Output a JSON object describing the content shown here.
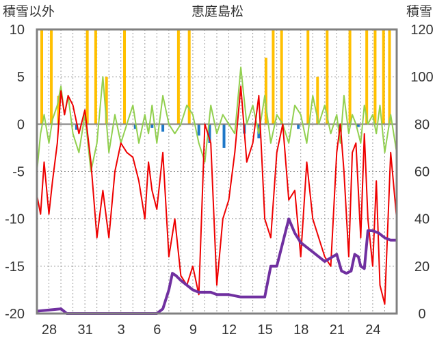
{
  "chart_data": {
    "type": "line",
    "title": "恵庭島松",
    "ylabel_left": "積雪以外",
    "ylabel_right": "積雪",
    "ylim_left": [
      -20,
      10
    ],
    "ylim_right": [
      0,
      120
    ],
    "y_ticks_left": [
      "10",
      "5",
      "0",
      "-5",
      "-10",
      "-15",
      "-20"
    ],
    "y_ticks_right": [
      "120",
      "100",
      "80",
      "60",
      "40",
      "20",
      "0"
    ],
    "x_ticks": [
      "28",
      "31",
      "3",
      "6",
      "9",
      "12",
      "15",
      "18",
      "21",
      "24"
    ],
    "x_range_days": [
      0,
      30
    ],
    "grid": "dotted-vertical-and-horizontal",
    "colors": {
      "temperature": "#ee0000",
      "wind": "#92d050",
      "precip_pos": "#ffc000",
      "precip_neg": "#1f78c8",
      "snow_depth": "#7030a0",
      "frame": "#808080",
      "zero_line": "#808080"
    },
    "series": [
      {
        "key": "temperature",
        "axis": "left",
        "x": [
          0,
          0.3,
          0.6,
          1,
          1.3,
          1.7,
          2,
          2.3,
          2.6,
          3,
          3.5,
          4,
          4.5,
          5,
          5.5,
          6,
          6.5,
          7,
          7.5,
          8,
          8.5,
          9,
          9.3,
          9.6,
          10,
          10.5,
          11,
          11.5,
          12,
          12.5,
          13,
          13.5,
          14,
          14.5,
          15,
          15.5,
          16,
          16.5,
          17,
          17.5,
          18,
          18.5,
          19,
          19.5,
          20,
          20.5,
          21,
          21.5,
          22,
          22.5,
          23,
          23.5,
          24,
          24.5,
          25,
          25.3,
          25.6,
          26,
          26.3,
          26.6,
          27,
          27.3,
          27.6,
          28,
          28.3,
          28.6,
          29,
          29.5,
          30
        ],
        "y": [
          -7.5,
          -9.5,
          -4,
          -9.5,
          -6,
          -2,
          3.5,
          1,
          3,
          2,
          -1,
          1.5,
          -4,
          -12,
          -7,
          -12,
          -5,
          -2,
          -3,
          -3.5,
          -6,
          -10,
          -4,
          -7,
          -9,
          -3,
          -14,
          -10,
          -16,
          -17,
          -15,
          -18,
          0,
          -2,
          -17,
          -10,
          -8,
          -3,
          4,
          -4,
          -2,
          3,
          -10,
          -12,
          -3,
          0,
          -8,
          -7,
          -14,
          -4,
          -10,
          -12,
          -14,
          -15,
          -3,
          0,
          -5,
          -14,
          -3,
          -2,
          -12,
          -1,
          -10,
          -15,
          -6,
          -17,
          -19,
          -3,
          -10
        ]
      },
      {
        "key": "wind",
        "axis": "left",
        "x": [
          0,
          0.3,
          0.6,
          1,
          1.3,
          1.7,
          2,
          2.3,
          2.6,
          3,
          3.5,
          4,
          4.5,
          5,
          5.5,
          6,
          6.5,
          7,
          7.5,
          8,
          8.5,
          9,
          9.3,
          9.6,
          10,
          10.5,
          11,
          11.5,
          12,
          12.5,
          13,
          13.5,
          14,
          14.5,
          15,
          15.5,
          16,
          16.5,
          17,
          17.5,
          18,
          18.5,
          19,
          19.5,
          20,
          20.5,
          21,
          21.5,
          22,
          22.5,
          23,
          23.5,
          24,
          24.5,
          25,
          25.3,
          25.6,
          26,
          26.3,
          26.6,
          27,
          27.3,
          27.6,
          28,
          28.3,
          28.6,
          29,
          29.5,
          30
        ],
        "y": [
          -5,
          -1,
          1,
          -2,
          0.5,
          2,
          4,
          1,
          3,
          -1,
          -3,
          1,
          -5,
          -2,
          5,
          -3,
          1,
          -2,
          0,
          2,
          -2,
          1,
          -1,
          2,
          -2,
          3,
          0,
          -1,
          0,
          2,
          1,
          -2,
          -4,
          2,
          -1,
          1,
          0,
          -1,
          6,
          0,
          2,
          -1,
          3,
          -2,
          1,
          0,
          -2,
          2,
          1,
          -2,
          3,
          0,
          2,
          -1,
          1,
          -2,
          3,
          -1,
          1,
          0,
          -2,
          2,
          0,
          1,
          -1,
          2,
          -3,
          1,
          -3
        ]
      },
      {
        "key": "snow_depth",
        "axis": "right",
        "x": [
          0,
          2,
          2.5,
          3,
          4,
          5,
          5.5,
          6,
          6.5,
          7,
          8,
          9,
          10,
          10.5,
          11,
          11.3,
          11.6,
          12,
          12.5,
          13,
          13.5,
          14,
          14.5,
          15,
          16,
          17,
          18,
          18.5,
          19,
          19.5,
          20,
          21,
          21.5,
          22,
          23,
          24,
          25,
          25.4,
          25.8,
          26.2,
          26.5,
          26.8,
          27,
          27.3,
          27.6,
          28,
          28.5,
          29,
          29.5,
          30
        ],
        "y": [
          1,
          2,
          0,
          0,
          0,
          0,
          0,
          0,
          0,
          0,
          0,
          0,
          0,
          2,
          10,
          17,
          16,
          14,
          12,
          10,
          9,
          9,
          9,
          8,
          8,
          7,
          7,
          7,
          7,
          20,
          20,
          40,
          34,
          30,
          26,
          22,
          25,
          18,
          17,
          18,
          25,
          24,
          20,
          19,
          35,
          35,
          34,
          32,
          31,
          31
        ]
      }
    ],
    "bars": {
      "key": "precipitation",
      "axis": "left",
      "x": [
        0.4,
        1.2,
        1.8,
        3.3,
        4.2,
        4.9,
        5.8,
        7.3,
        8.2,
        9.6,
        10.5,
        11.8,
        12.7,
        13.5,
        14.4,
        15.6,
        17.3,
        18.5,
        19.1,
        19.7,
        20.4,
        21.8,
        22.6,
        23.4,
        24.2,
        25.2,
        26.1,
        26.8,
        27.5,
        28.2,
        28.9,
        29.4
      ],
      "y": [
        10,
        10,
        3,
        -0.6,
        10,
        10,
        5,
        10,
        -0.5,
        -0.4,
        -0.8,
        10,
        10,
        -1.2,
        -2,
        -2.5,
        -1,
        -1.5,
        7,
        10,
        10,
        -0.5,
        10,
        5,
        10,
        -0.4,
        10,
        -0.3,
        10,
        10,
        10,
        10
      ]
    }
  }
}
